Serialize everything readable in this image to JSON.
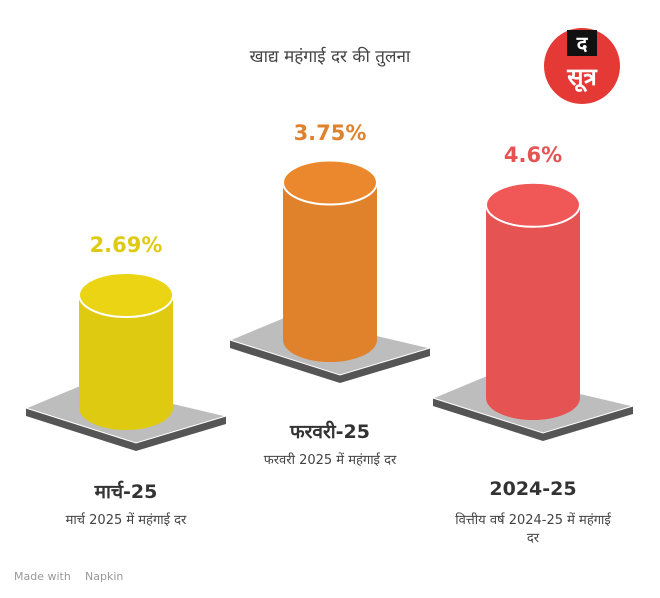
{
  "chart_data": {
    "type": "cylinder",
    "title": "खाद्य महंगाई दर की तुलना",
    "categories": [
      "मार्च-25",
      "फरवरी-25",
      "2024-25"
    ],
    "descriptions": [
      "मार्च 2025 में महंगाई दर",
      "फरवरी 2025 में महंगाई दर",
      "वित्तीय वर्ष 2024-25 में महंगाई दर"
    ],
    "values": [
      2.69,
      3.75,
      4.6
    ],
    "value_labels": [
      "2.69%",
      "3.75%",
      "4.6%"
    ],
    "colors": [
      "#dfca12",
      "#e0822b",
      "#e55353"
    ]
  },
  "logo": {
    "top": "द",
    "bottom": "सूत्र"
  },
  "footer": {
    "prefix": "Made with",
    "brand": "Napkin"
  }
}
